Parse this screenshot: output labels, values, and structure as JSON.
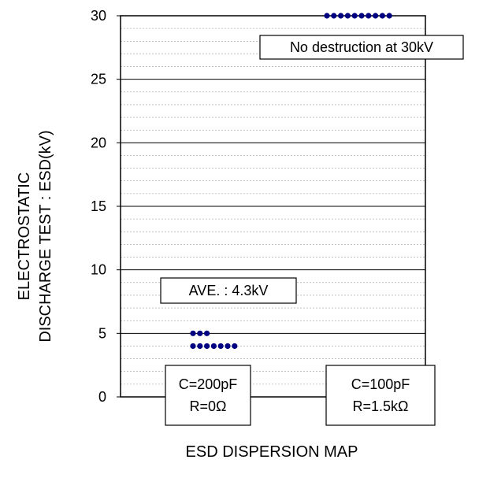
{
  "chart_data": {
    "type": "scatter",
    "title": "",
    "xlabel": "ESD DISPERSION MAP",
    "ylabel": [
      "ELECTROSTATIC",
      "DISCHARGE TEST : ESD(kV)"
    ],
    "ylim": [
      0,
      30
    ],
    "yticks": [
      0,
      5,
      10,
      15,
      20,
      25,
      30
    ],
    "grid": "major and minor horizontal",
    "groups": [
      {
        "condition": [
          "C=200pF",
          "R=0Ω"
        ],
        "points": [
          {
            "y": 5,
            "count": 3
          },
          {
            "y": 4,
            "count": 7
          }
        ],
        "annotation": "AVE. : 4.3kV"
      },
      {
        "condition": [
          "C=100pF",
          "R=1.5kΩ"
        ],
        "points": [
          {
            "y": 30,
            "count": 10
          }
        ],
        "annotation": "No destruction at 30kV"
      }
    ],
    "marker_color": "#000080"
  }
}
